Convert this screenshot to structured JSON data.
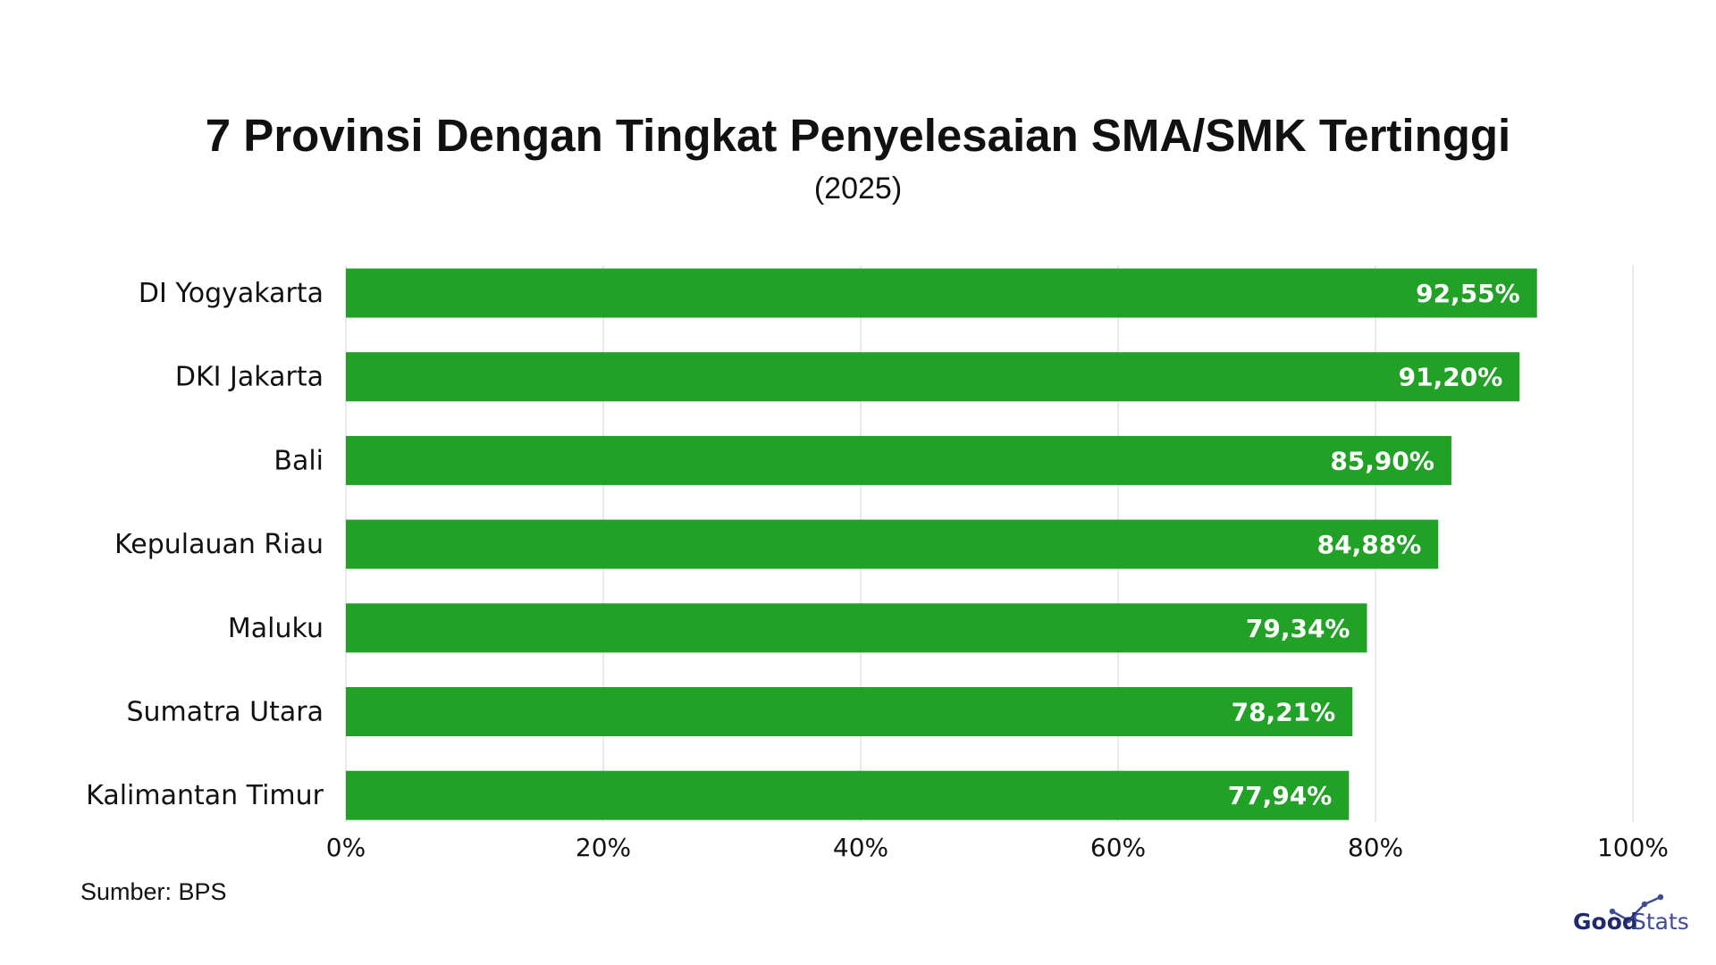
{
  "title": "7 Provinsi Dengan Tingkat Penyelesaian SMA/SMK Tertinggi",
  "subtitle": "(2025)",
  "source": "Sumber: BPS",
  "logo": {
    "good": "Good",
    "stats": "Stats"
  },
  "colors": {
    "bar": "#22a127",
    "bar_label": "#ffffff",
    "grid": "#e2e2e2",
    "text": "#111111"
  },
  "chart_data": {
    "type": "bar",
    "orientation": "horizontal",
    "title": "7 Provinsi Dengan Tingkat Penyelesaian SMA/SMK Tertinggi",
    "subtitle": "(2025)",
    "categories": [
      "DI Yogyakarta",
      "DKI Jakarta",
      "Bali",
      "Kepulauan Riau",
      "Maluku",
      "Sumatra Utara",
      "Kalimantan Timur"
    ],
    "values": [
      92.55,
      91.2,
      85.9,
      84.88,
      79.34,
      78.21,
      77.94
    ],
    "data_labels": [
      "92,55%",
      "91,20%",
      "85,90%",
      "84,88%",
      "79,34%",
      "78,21%",
      "77,94%"
    ],
    "xlim": [
      0,
      100
    ],
    "x_ticks": [
      0,
      20,
      40,
      60,
      80,
      100
    ],
    "x_tick_labels": [
      "0%",
      "20%",
      "40%",
      "60%",
      "80%",
      "100%"
    ],
    "grid": true,
    "legend": "none",
    "xlabel": "",
    "ylabel": ""
  }
}
